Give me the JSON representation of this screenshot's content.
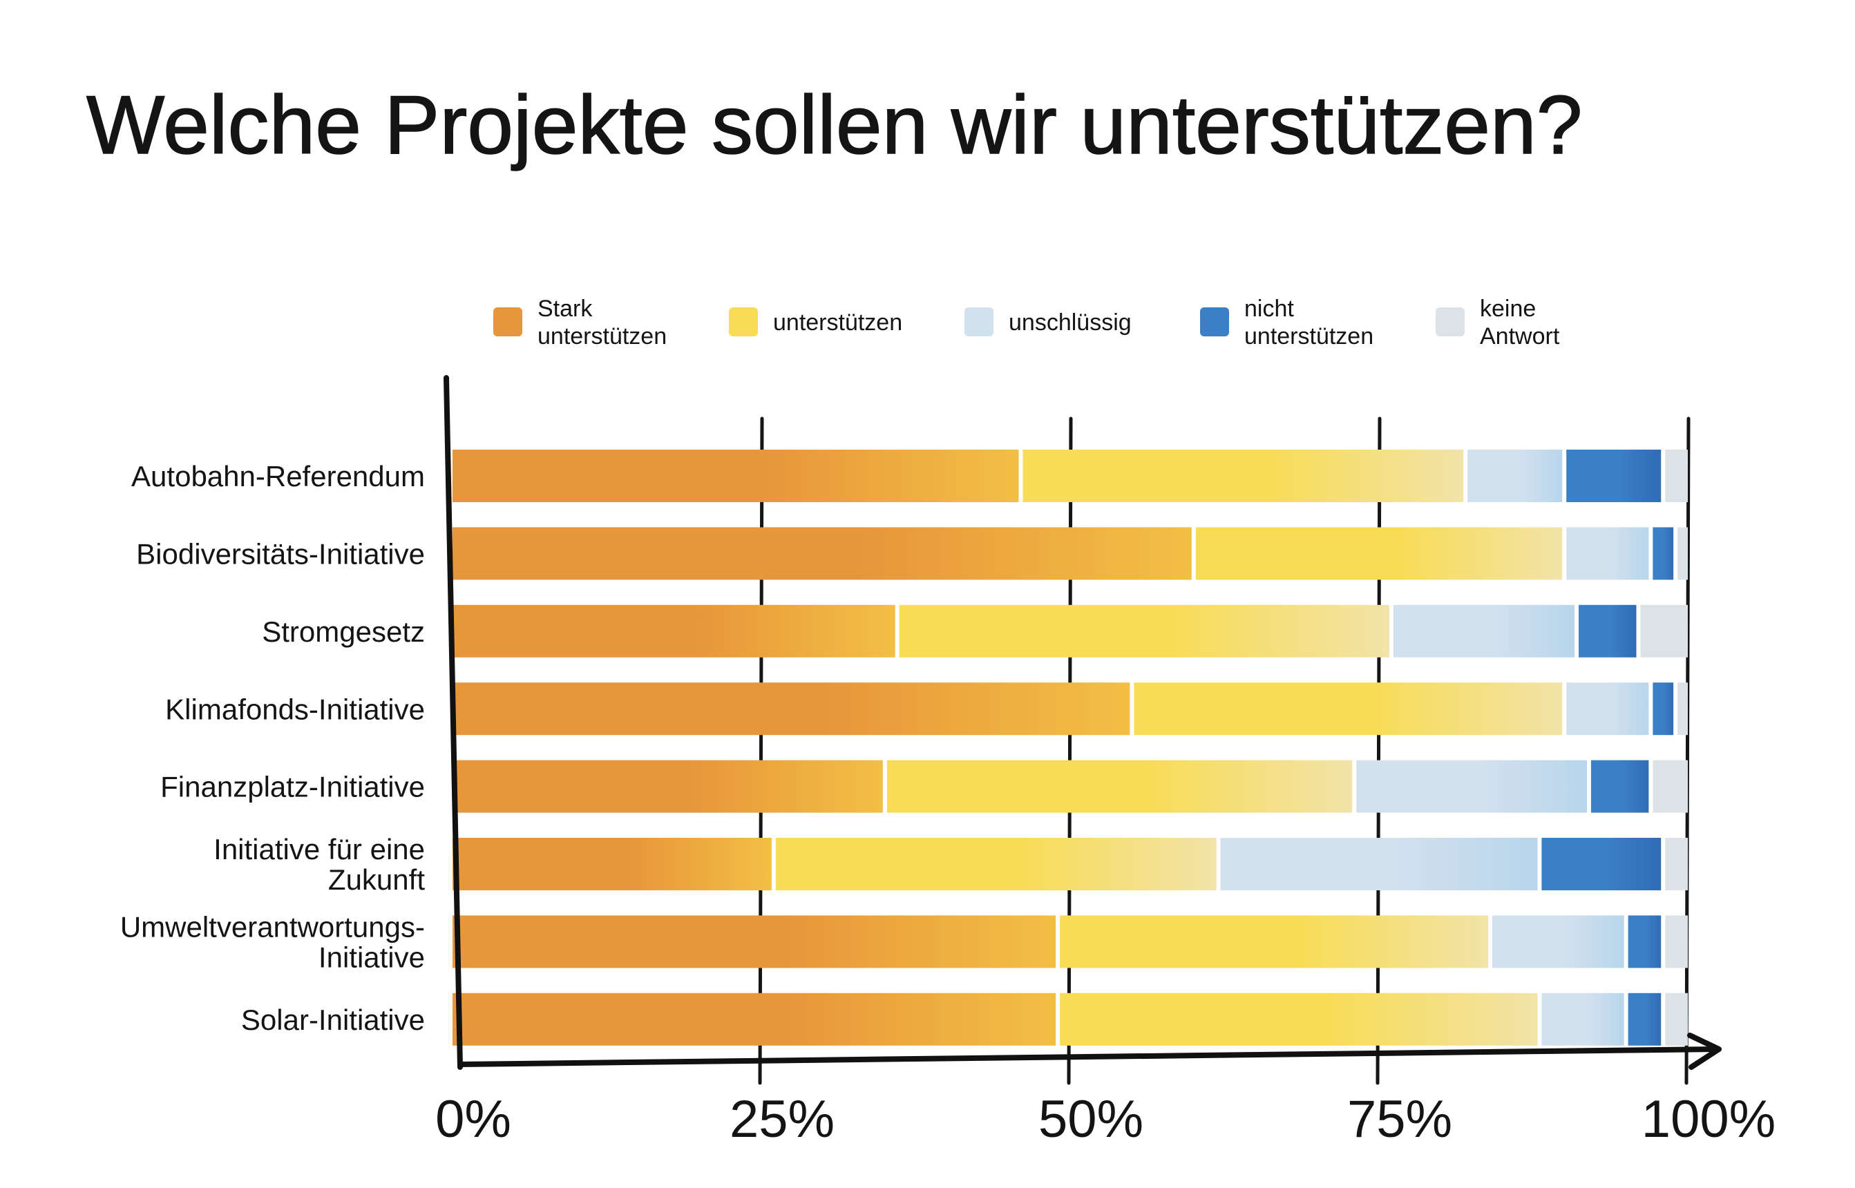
{
  "chart_data": {
    "type": "bar",
    "orientation": "horizontal",
    "stacked": true,
    "title": "Welche Projekte sollen wir unterstützen?",
    "categories": [
      "Autobahn-Referendum",
      "Biodiversitäts-Initiative",
      "Stromgesetz",
      "Klimafonds-Initiative",
      "Finanzplatz-Initiative",
      "Initiative für eine Zukunft",
      "Umweltverantwortungs-Initiative",
      "Solar-Initiative"
    ],
    "series": [
      {
        "name": "Stark unterstützen",
        "color": "#E8963A",
        "color_end": "#F2BF45",
        "values": [
          46,
          60,
          36,
          55,
          35,
          26,
          49,
          49
        ]
      },
      {
        "name": "unterstützen",
        "color": "#F8DC55",
        "color_end": "#F2E3A8",
        "values": [
          36,
          30,
          40,
          35,
          38,
          36,
          35,
          39
        ]
      },
      {
        "name": "unschlüssig",
        "color": "#D2E1EE",
        "color_end": "#B8D5EC",
        "values": [
          8,
          7,
          15,
          7,
          19,
          26,
          11,
          7
        ]
      },
      {
        "name": "nicht unterstützen",
        "color": "#3B7FC6",
        "color_end": "#2F6DB6",
        "values": [
          8,
          2,
          5,
          2,
          5,
          10,
          3,
          3
        ]
      },
      {
        "name": "keine Antwort",
        "color": "#DDE2E7",
        "color_end": "#DDE2E7",
        "values": [
          2,
          1,
          4,
          1,
          3,
          2,
          2,
          2
        ]
      }
    ],
    "xlim": [
      0,
      100
    ],
    "x_tick_values": [
      0,
      25,
      50,
      75,
      100
    ],
    "x_tick_labels": [
      "0%",
      "25%",
      "50%",
      "75%",
      "100%"
    ],
    "grid": true,
    "legend": "top"
  }
}
